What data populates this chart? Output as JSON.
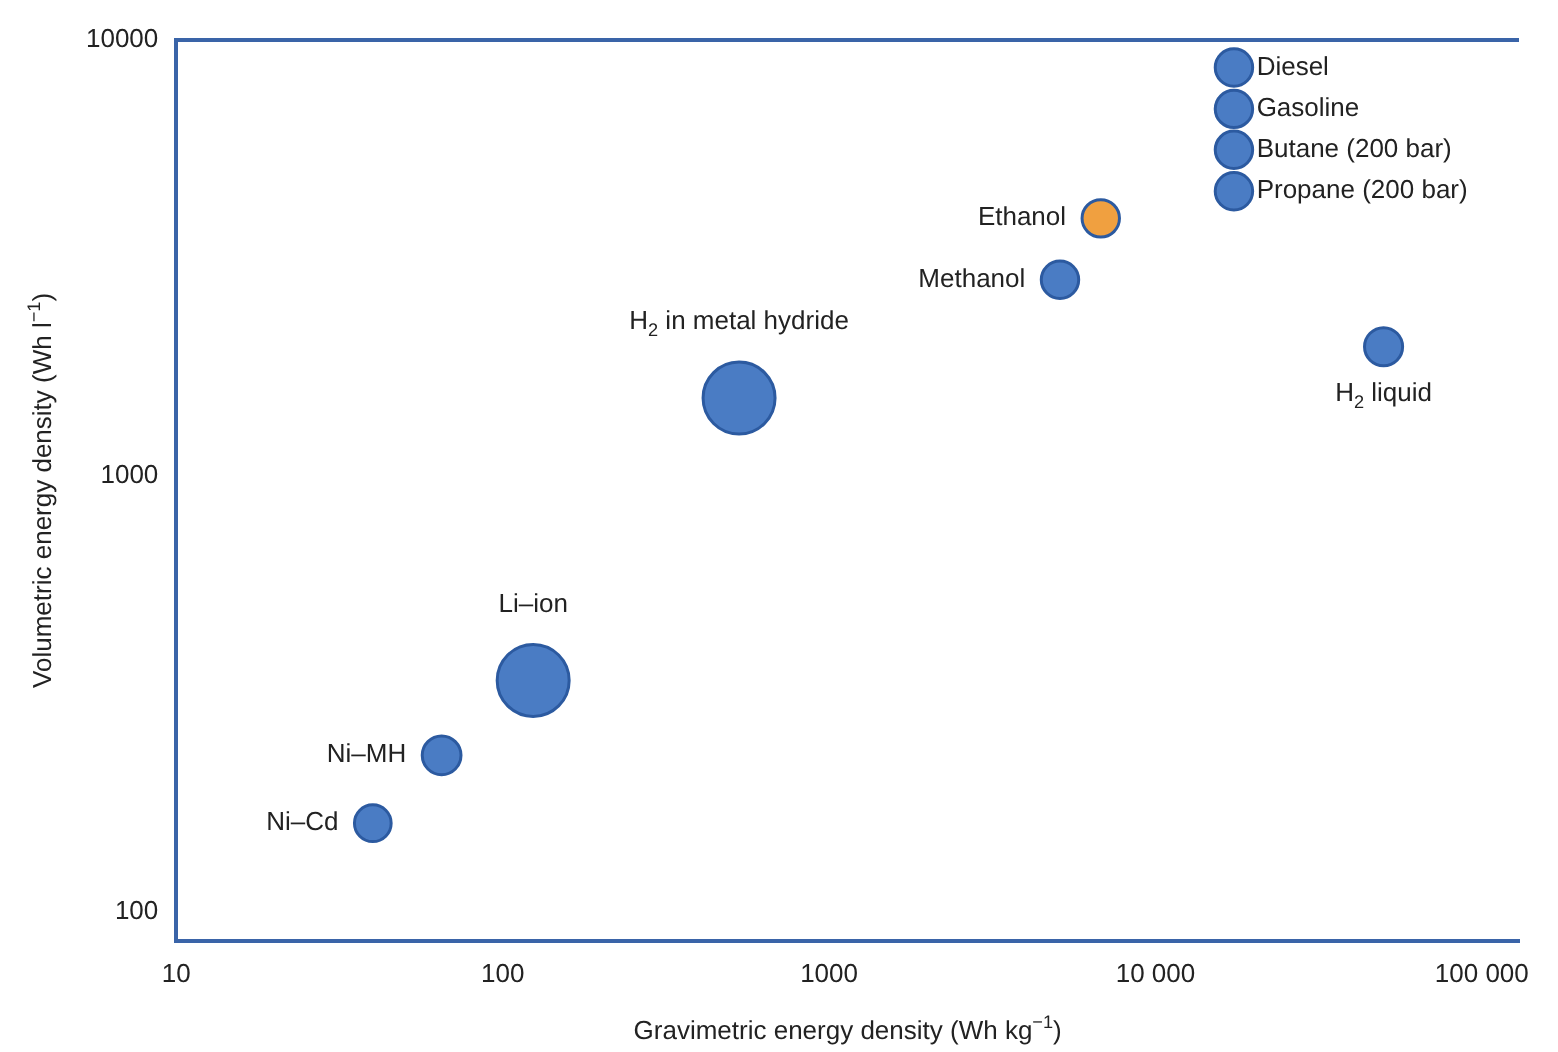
{
  "chart_data": {
    "type": "bubble",
    "xlabel": "Gravimetric energy density (Wh kg$^{−1}$)",
    "ylabel": "Volumetric energy density (Wh l$^{−1}$)",
    "log": "xy",
    "grid": false,
    "legend": false,
    "xlim": [
      10,
      130000
    ],
    "ylim": [
      86,
      10000
    ],
    "xticks": [
      10,
      100,
      1000,
      {
        "value": 10000,
        "label": "10 000"
      },
      {
        "value": 100000,
        "label": "100 000"
      }
    ],
    "yticks": [
      100,
      1000,
      10000
    ],
    "series": [
      {
        "x": [
          17400,
          17400,
          17400,
          17400,
          6800,
          5100,
          50000,
          530,
          124,
          65,
          40
        ],
        "values": [
          8650,
          6950,
          5600,
          4500,
          3900,
          2820,
          1980,
          1510,
          340,
          229,
          160
        ],
        "sizes": [
          0.27,
          0.27,
          0.27,
          0.27,
          0.27,
          0.27,
          0.28,
          1,
          1,
          0.29,
          0.26
        ],
        "colors": [
          "#4a7cc4",
          "#4a7cc4",
          "#4a7cc4",
          "#4a7cc4",
          "#f0a040",
          "#4a7cc4",
          "#4a7cc4",
          "#4a7cc4",
          "#4a7cc4",
          "#4a7cc4",
          "#4a7cc4"
        ]
      }
    ],
    "annotations": [
      {
        "text": "Diesel",
        "x": 17400,
        "y": 8650
      },
      {
        "text": "Gasoline",
        "x": 17400,
        "y": 6950
      },
      {
        "text": "Butane (200 bar)",
        "x": 17400,
        "y": 5600
      },
      {
        "text": "Propane (200 bar)",
        "x": 17400,
        "y": 4500
      },
      {
        "text": "Ethanol",
        "x": 6800,
        "y": 3900
      },
      {
        "text": "Methanol",
        "x": 5100,
        "y": 2820
      },
      {
        "text": "H$_{2}$ liquid",
        "x": 50000,
        "y": 1980
      },
      {
        "text": "H$_{2}$ in metal hydride",
        "x": 530,
        "y": 1510
      },
      {
        "text": "Li–ion",
        "x": 124,
        "y": 340
      },
      {
        "text": "Ni–MH",
        "x": 65,
        "y": 229
      },
      {
        "text": "Ni–Cd",
        "x": 40,
        "y": 160
      }
    ]
  }
}
